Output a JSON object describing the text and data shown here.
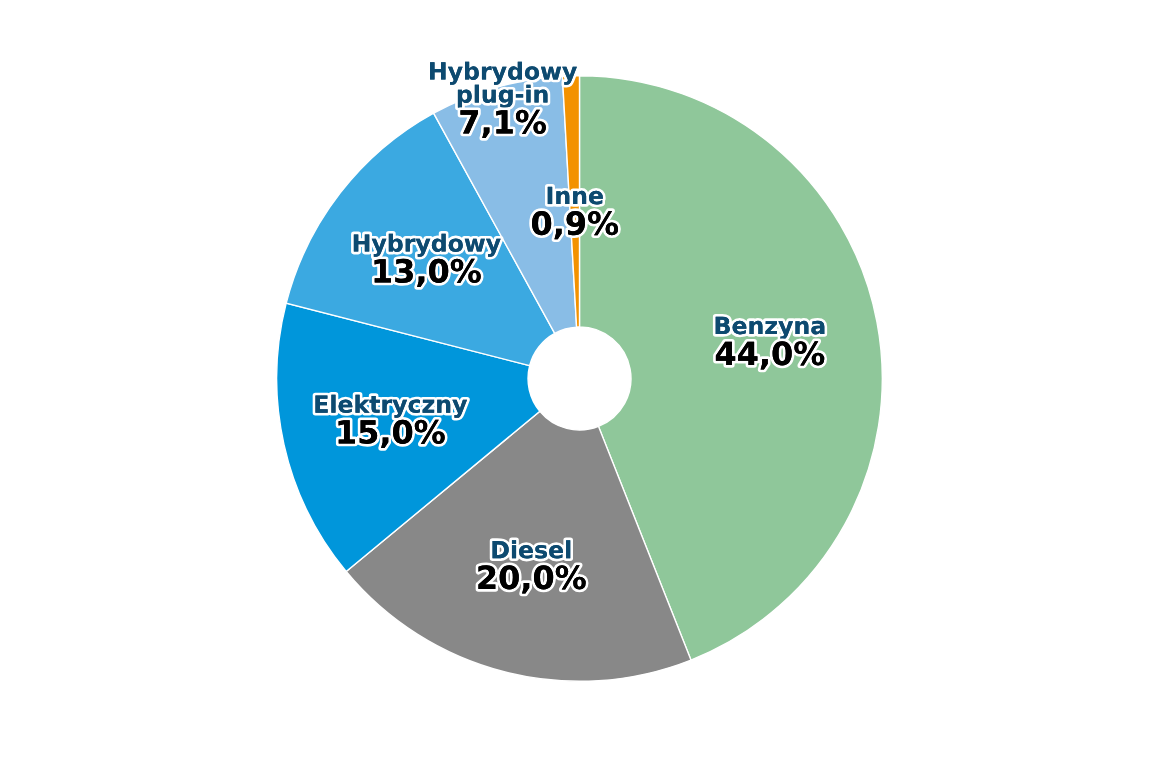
{
  "chart_data": {
    "type": "donut",
    "categories": [
      "Benzyna",
      "Diesel",
      "Elektryczny",
      "Hybrydowy",
      "Hybrydowy\nplug-in",
      "Inne"
    ],
    "values": [
      44.0,
      20.0,
      15.0,
      13.0,
      7.1,
      0.9
    ],
    "colors": [
      "#8fc79a",
      "#888888",
      "#0096db",
      "#3ba9e1",
      "#89bde6",
      "#f39200"
    ],
    "value_labels": [
      "44,0%",
      "20,0%",
      "15,0%",
      "13,0%",
      "7,1%",
      "0,9%"
    ],
    "legend": false
  }
}
